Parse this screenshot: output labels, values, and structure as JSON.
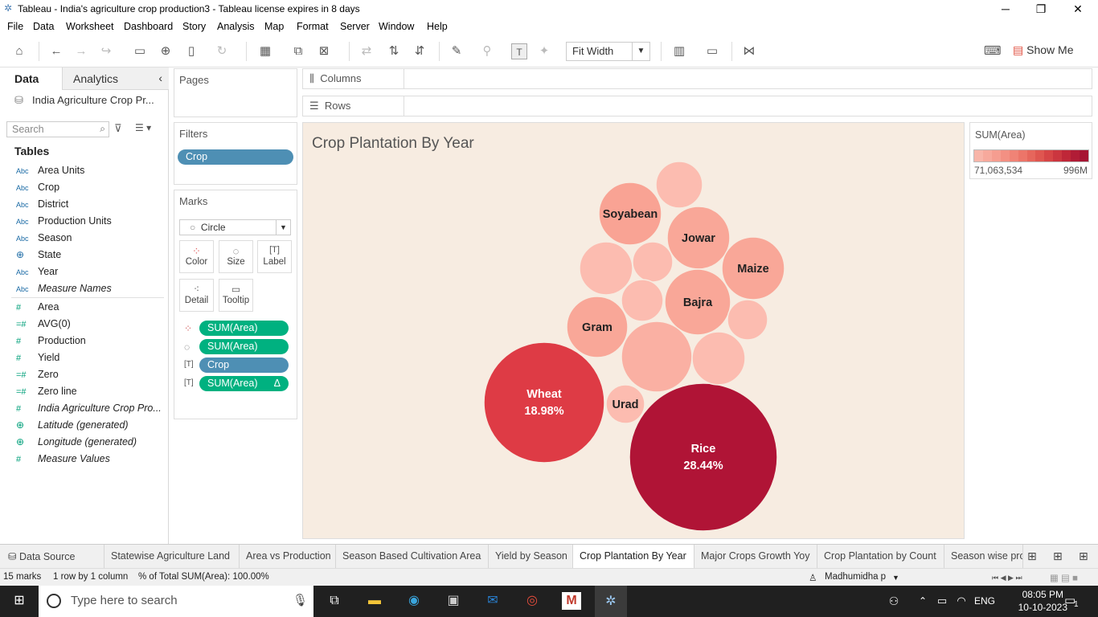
{
  "window": {
    "title": "Tableau - India's agriculture crop production3 - Tableau license expires in 8 days"
  },
  "menu": [
    "File",
    "Data",
    "Worksheet",
    "Dashboard",
    "Story",
    "Analysis",
    "Map",
    "Format",
    "Server",
    "Window",
    "Help"
  ],
  "toolbar": {
    "fit": "Fit Width",
    "show_me": "Show Me"
  },
  "left_panel": {
    "tab_data": "Data",
    "tab_analytics": "Analytics",
    "datasource": "India Agriculture Crop Pr...",
    "search_placeholder": "Search",
    "tables_heading": "Tables",
    "dimensions": [
      {
        "type": "Abc",
        "name": "Area Units"
      },
      {
        "type": "Abc",
        "name": "Crop"
      },
      {
        "type": "Abc",
        "name": "District"
      },
      {
        "type": "Abc",
        "name": "Production Units"
      },
      {
        "type": "Abc",
        "name": "Season"
      },
      {
        "type": "geo",
        "name": "State"
      },
      {
        "type": "Abc",
        "name": "Year"
      },
      {
        "type": "Abc",
        "name": "Measure Names"
      }
    ],
    "measures": [
      {
        "type": "#",
        "name": "Area"
      },
      {
        "type": "=#",
        "name": "AVG(0)"
      },
      {
        "type": "#",
        "name": "Production"
      },
      {
        "type": "#",
        "name": "Yield"
      },
      {
        "type": "=#",
        "name": "Zero"
      },
      {
        "type": "=#",
        "name": "Zero line"
      },
      {
        "type": "#",
        "name": "India Agriculture Crop Pro..."
      },
      {
        "type": "geo",
        "name": "Latitude (generated)"
      },
      {
        "type": "geo",
        "name": "Longitude (generated)"
      },
      {
        "type": "#",
        "name": "Measure Values"
      }
    ]
  },
  "pages": {
    "heading": "Pages"
  },
  "filters": {
    "heading": "Filters",
    "pill": "Crop"
  },
  "marks": {
    "heading": "Marks",
    "type": "Circle",
    "buttons": [
      "Color",
      "Size",
      "Label",
      "Detail",
      "Tooltip"
    ],
    "pills": [
      "SUM(Area)",
      "SUM(Area)",
      "Crop",
      "SUM(Area)"
    ],
    "delta": "Δ"
  },
  "shelves": {
    "columns": "Columns",
    "rows": "Rows"
  },
  "viz": {
    "title": "Crop Plantation By Year"
  },
  "legend": {
    "title": "SUM(Area)",
    "min": "71,063,534",
    "max": "996M",
    "colors": [
      "#f8b5a9",
      "#f7a99c",
      "#f59d90",
      "#f39083",
      "#f08376",
      "#ec7569",
      "#e6665c",
      "#df5650",
      "#d64546",
      "#cb363f",
      "#bf2738",
      "#b11c36",
      "#a61533"
    ]
  },
  "chart_data": {
    "type": "packed-bubble",
    "measure": "SUM(Area)",
    "bubbles": [
      {
        "label": "Rice",
        "pct": "28.44%",
        "color": "#b01436",
        "value": 996
      },
      {
        "label": "Wheat",
        "pct": "18.98%",
        "color": "#de3b45",
        "value": 665
      },
      {
        "label": "Soyabean",
        "pct": "",
        "color": "#f9a394",
        "value": 190
      },
      {
        "label": "Jowar",
        "pct": "",
        "color": "#f9a798",
        "value": 180
      },
      {
        "label": "Maize",
        "pct": "",
        "color": "#f9a798",
        "value": 180
      },
      {
        "label": "Bajra",
        "pct": "",
        "color": "#f9a798",
        "value": 185
      },
      {
        "label": "Gram",
        "pct": "",
        "color": "#f9a798",
        "value": 170
      },
      {
        "label": "Urad",
        "pct": "",
        "color": "#fcbcb0",
        "value": 75
      },
      {
        "label": "",
        "pct": "",
        "color": "#fab0a3",
        "value": 230
      },
      {
        "label": "",
        "pct": "",
        "color": "#fcbcb0",
        "value": 130
      },
      {
        "label": "",
        "pct": "",
        "color": "#fcbcb0",
        "value": 120
      },
      {
        "label": "",
        "pct": "",
        "color": "#fcbcb0",
        "value": 95
      },
      {
        "label": "",
        "pct": "",
        "color": "#fcbcb0",
        "value": 80
      },
      {
        "label": "",
        "pct": "",
        "color": "#fcbcb0",
        "value": 75
      },
      {
        "label": "",
        "pct": "",
        "color": "#fcbcb0",
        "value": 70
      }
    ]
  },
  "sheet_tabs": [
    "Data Source",
    "Statewise Agriculture Land",
    "Area vs Production",
    "Season Based Cultivation Area",
    "Yield by Season",
    "Crop Plantation By Year",
    "Major Crops Growth Yoy",
    "Crop Plantation by Count",
    "Season wise pro"
  ],
  "active_tab": "Crop Plantation By Year",
  "status": {
    "marks": "15 marks",
    "rows": "1 row by 1 column",
    "total": "% of Total SUM(Area): 100.00%",
    "user": "Madhumidha p"
  },
  "taskbar": {
    "search": "Type here to search",
    "lang": "ENG",
    "time": "08:05 PM",
    "date": "10-10-2023",
    "notif": "1"
  }
}
